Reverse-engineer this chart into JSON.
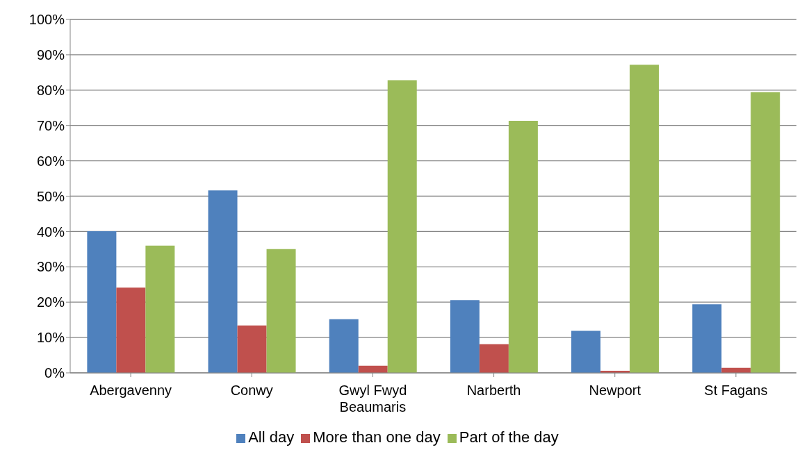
{
  "chart_data": {
    "type": "bar",
    "categories": [
      "Abergavenny",
      "Conwy",
      "Gwyl Fwyd Beaumaris",
      "Narberth",
      "Newport",
      "St Fagans"
    ],
    "series": [
      {
        "name": "All day",
        "color": "#4f81bd",
        "values": [
          40.1,
          51.6,
          15.2,
          20.6,
          11.9,
          19.4
        ]
      },
      {
        "name": "More than one day",
        "color": "#c0504d",
        "values": [
          24.1,
          13.4,
          2.0,
          8.1,
          0.6,
          1.4
        ]
      },
      {
        "name": "Part of the day",
        "color": "#9bbb59",
        "values": [
          36.0,
          35.0,
          82.8,
          71.3,
          87.2,
          79.4
        ]
      }
    ],
    "ylim": [
      0,
      100
    ],
    "yticks": [
      {
        "value": 0,
        "label": "0%"
      },
      {
        "value": 10,
        "label": "10%"
      },
      {
        "value": 20,
        "label": "20%"
      },
      {
        "value": 30,
        "label": "30%"
      },
      {
        "value": 40,
        "label": "40%"
      },
      {
        "value": 50,
        "label": "50%"
      },
      {
        "value": 60,
        "label": "60%"
      },
      {
        "value": 70,
        "label": "70%"
      },
      {
        "value": 80,
        "label": "80%"
      },
      {
        "value": 90,
        "label": "90%"
      },
      {
        "value": 100,
        "label": "100%"
      }
    ],
    "grid": "y",
    "legend": "bottom"
  }
}
